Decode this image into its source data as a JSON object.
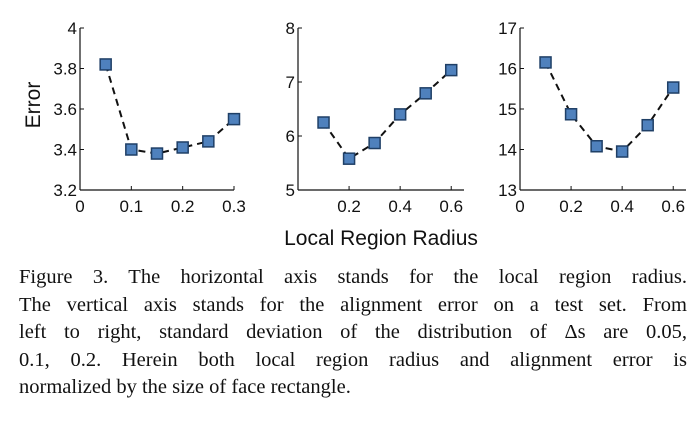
{
  "chart_data": [
    {
      "type": "line",
      "ylabel": "Error",
      "x": [
        0.05,
        0.1,
        0.15,
        0.2,
        0.25,
        0.3
      ],
      "values": [
        3.82,
        3.4,
        3.38,
        3.41,
        3.44,
        3.55
      ],
      "xlim": [
        0,
        0.3
      ],
      "ylim": [
        3.2,
        4
      ],
      "xticks": [
        "0",
        "0.1",
        "0.2",
        "0.3"
      ],
      "xtick_values": [
        0,
        0.1,
        0.2,
        0.3
      ],
      "yticks": [
        "3.2",
        "3.4",
        "3.6",
        "3.8",
        "4"
      ],
      "ytick_values": [
        3.2,
        3.4,
        3.6,
        3.8,
        4
      ],
      "marker": "square",
      "line_style": "dashed",
      "marker_color": "#4f81bd",
      "grid": false
    },
    {
      "type": "line",
      "x": [
        0.1,
        0.2,
        0.3,
        0.4,
        0.5,
        0.6
      ],
      "values": [
        6.25,
        5.58,
        5.87,
        6.4,
        6.79,
        7.22
      ],
      "xlim": [
        0,
        0.65
      ],
      "ylim": [
        5,
        8
      ],
      "xticks": [
        "0.2",
        "0.4",
        "0.6"
      ],
      "xtick_values": [
        0.2,
        0.4,
        0.6
      ],
      "yticks": [
        "5",
        "6",
        "7",
        "8"
      ],
      "ytick_values": [
        5,
        6,
        7,
        8
      ],
      "marker": "square",
      "line_style": "dashed",
      "marker_color": "#4f81bd",
      "grid": false
    },
    {
      "type": "line",
      "x": [
        0.1,
        0.2,
        0.3,
        0.4,
        0.5,
        0.6
      ],
      "values": [
        16.15,
        14.87,
        14.08,
        13.95,
        14.6,
        15.53
      ],
      "xlim": [
        0,
        0.65
      ],
      "ylim": [
        13,
        17
      ],
      "xticks": [
        "0",
        "0.2",
        "0.4",
        "0.6"
      ],
      "xtick_values": [
        0,
        0.2,
        0.4,
        0.6
      ],
      "yticks": [
        "13",
        "14",
        "15",
        "16",
        "17"
      ],
      "ytick_values": [
        13,
        14,
        15,
        16,
        17
      ],
      "marker": "square",
      "line_style": "dashed",
      "marker_color": "#4f81bd",
      "grid": false
    }
  ],
  "shared_xlabel": "Local Region Radius",
  "caption": {
    "lines": [
      "Figure 3. The horizontal axis stands for the local region radius.",
      "The vertical axis stands for the alignment error on a test set. From",
      "left to right, standard deviation of the distribution of Δs are 0.05,",
      "0.1, 0.2.  Herein both local region radius and alignment error is",
      "normalized by the size of face rectangle."
    ]
  }
}
